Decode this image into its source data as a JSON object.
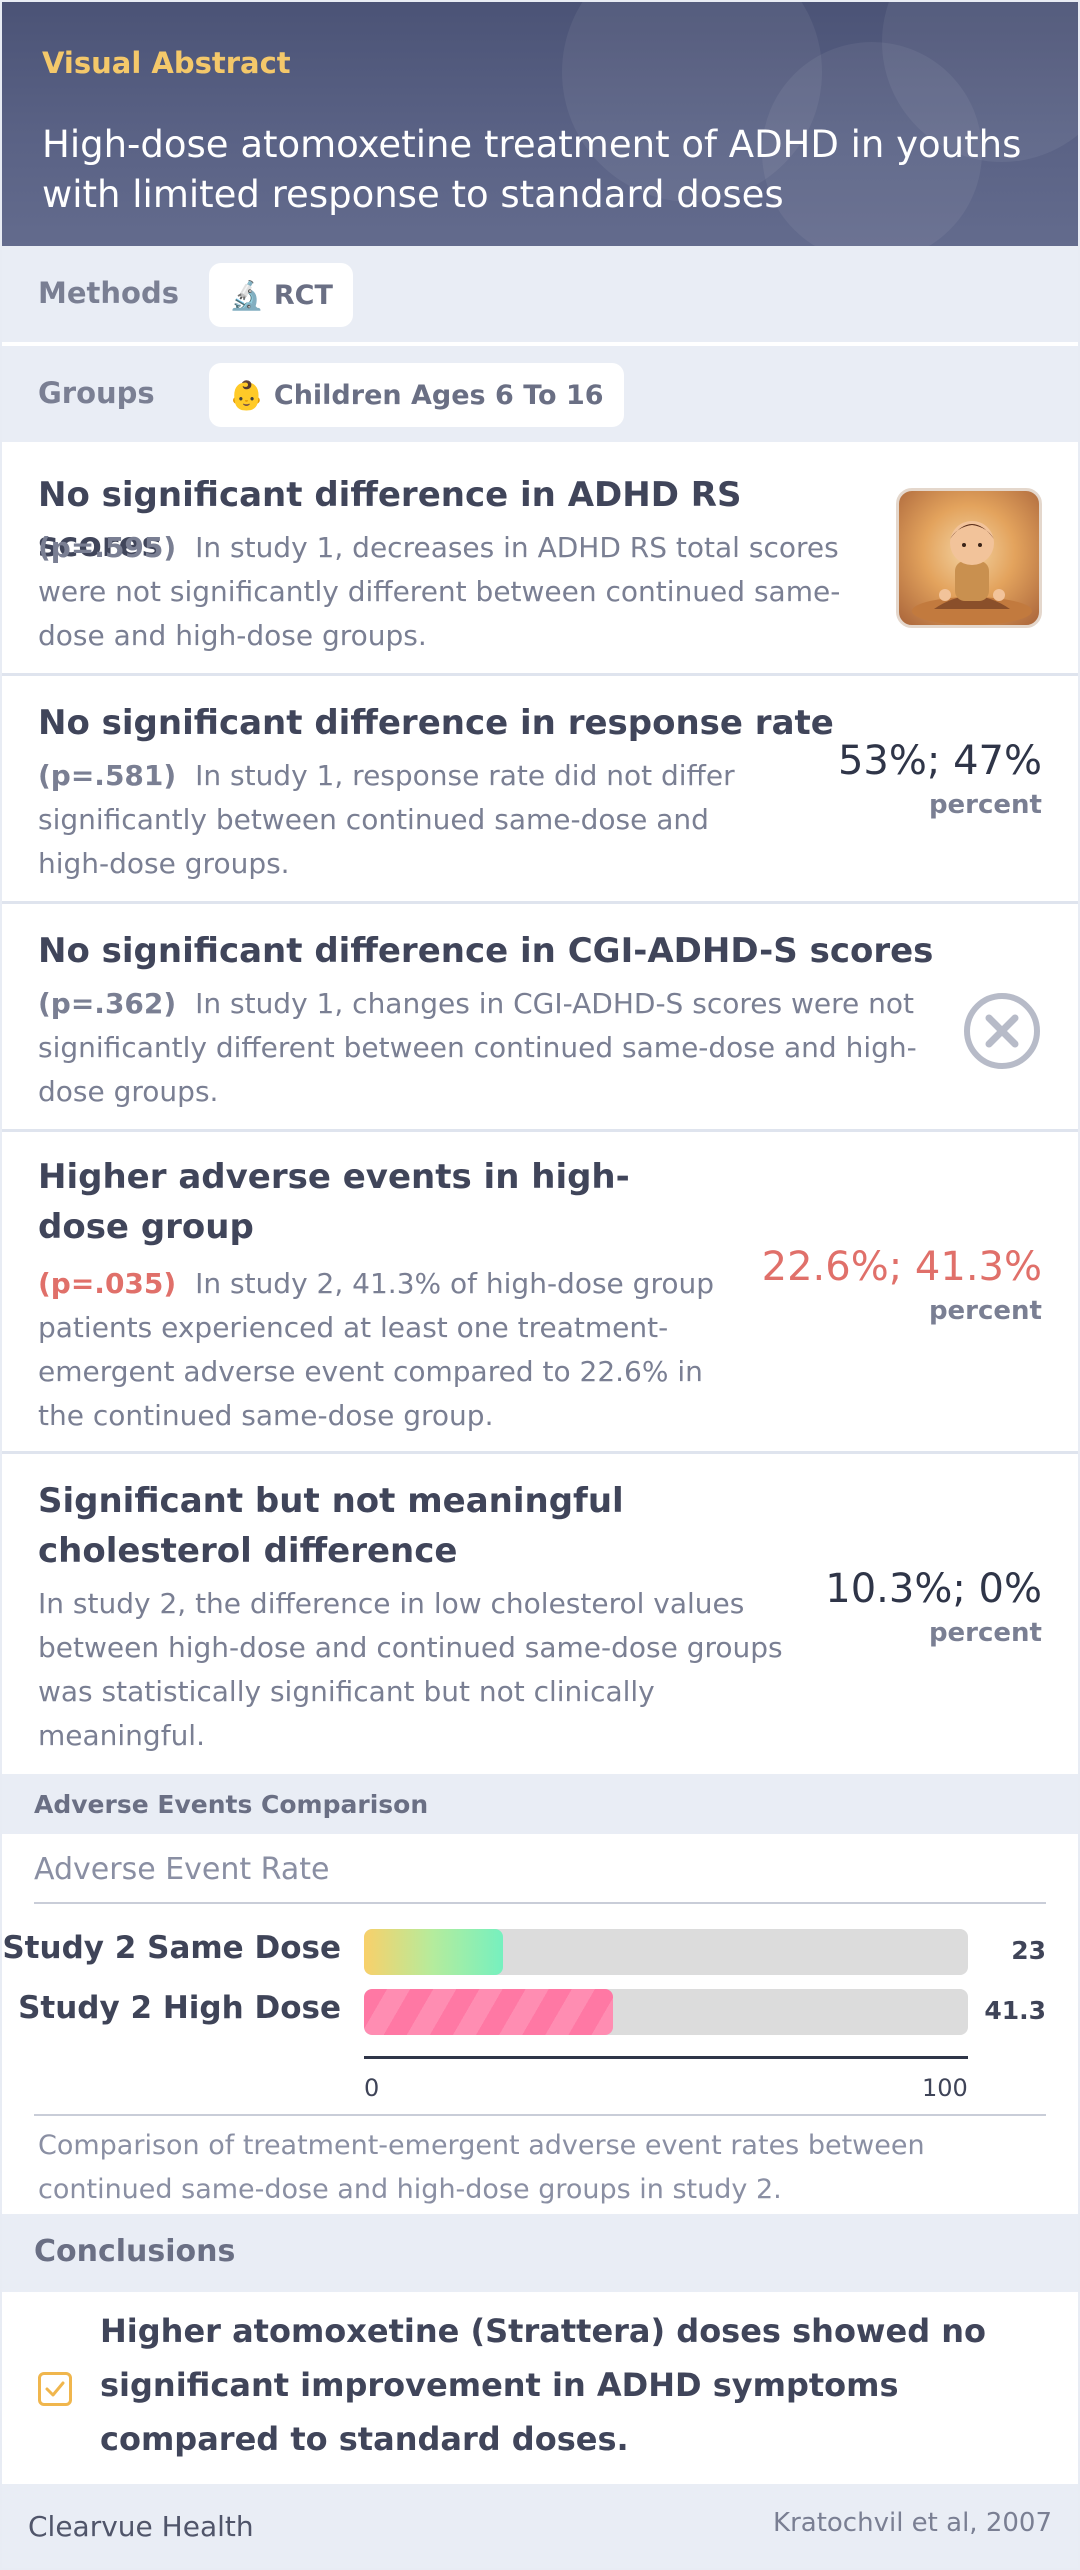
{
  "header": {
    "eyebrow": "Visual Abstract",
    "title": "High-dose atomoxetine treatment of ADHD in youths with limited response to standard doses"
  },
  "methods": {
    "label": "Methods",
    "chip_icon": "🔬",
    "chip_text": "RCT"
  },
  "groups": {
    "label": "Groups",
    "chip_icon": "👶",
    "chip_text": "Children Ages 6 To 16"
  },
  "findings": [
    {
      "title": "No significant difference in ADHD RS scores",
      "p": "(p=.595)",
      "desc": "In study 1, decreases in ADHD RS total scores were not significantly different between continued same-dose and high-dose groups.",
      "visual": "meditating-child-illustration"
    },
    {
      "title": "No significant difference in response rate",
      "p": "(p=.581)",
      "desc": "In study 1, response rate did not differ significantly between continued same-dose and high-dose groups.",
      "value": "53%; 47%",
      "unit": "percent"
    },
    {
      "title": "No significant difference in CGI-ADHD-S scores",
      "p": "(p=.362)",
      "desc": "In study 1, changes in CGI-ADHD-S scores were not significantly different between continued same-dose and high-dose groups.",
      "visual": "x-circle-icon"
    },
    {
      "title": "Higher adverse events in high-dose group",
      "p": "(p=.035)",
      "desc": "In study 2, 41.3% of high-dose group patients experienced at least one treatment-emergent adverse event compared to 22.6% in the continued same-dose group.",
      "value": "22.6%; 41.3%",
      "unit": "percent",
      "highlight_color": "#e0706a"
    },
    {
      "title": "Significant but not meaningful cholesterol difference",
      "desc": "In study 2, the difference in low cholesterol values between high-dose and continued same-dose groups was statistically significant but not clinically meaningful.",
      "value": "10.3%; 0%",
      "unit": "percent"
    }
  ],
  "chart_section": {
    "label": "Adverse Events Comparison"
  },
  "chart_data": {
    "type": "bar",
    "title": "Adverse Event Rate",
    "categories": [
      "Study 2 Same Dose",
      "Study 2 High Dose"
    ],
    "values": [
      23,
      41.3
    ],
    "value_labels": [
      "23",
      "41.3"
    ],
    "xlim": [
      0,
      100
    ],
    "tick_labels": [
      "0",
      "100"
    ],
    "orientation": "horizontal",
    "colors": [
      "#b4ec9d",
      "#ff6f9c"
    ],
    "caption": "Comparison of treatment-emergent adverse event rates between continued same-dose and high-dose groups in study 2."
  },
  "conclusions": {
    "label": "Conclusions",
    "text": "Higher atomoxetine (Strattera) doses showed no significant improvement in ADHD symptoms compared to standard doses."
  },
  "footer": {
    "brand": "Clearvue Health",
    "citation": "Kratochvil et al, 2007"
  }
}
